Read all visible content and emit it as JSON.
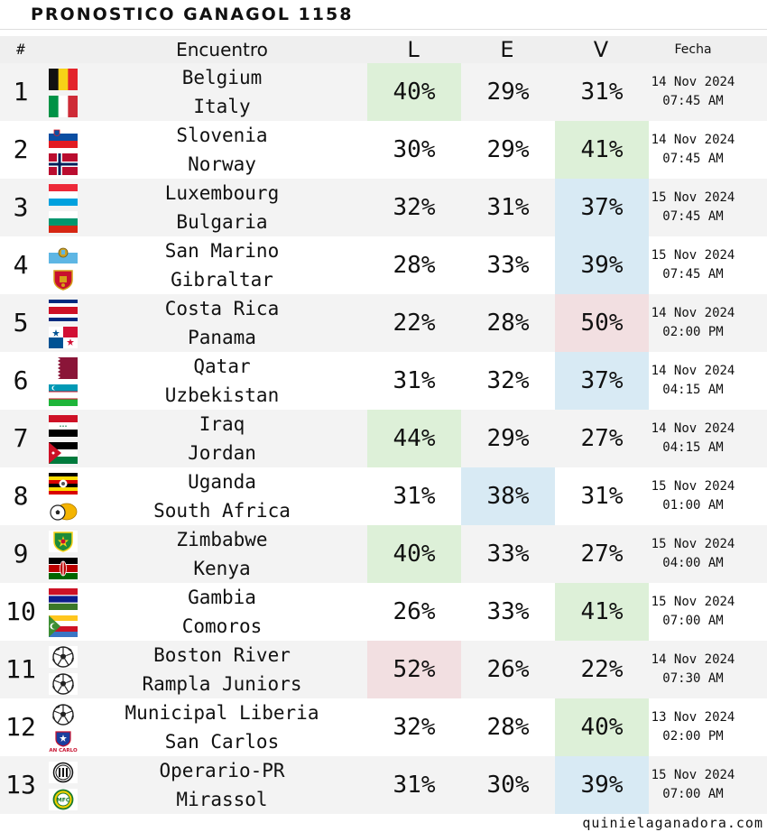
{
  "title": "PRONOSTICO GANAGOL 1158",
  "header": {
    "num": "#",
    "match": "Encuentro",
    "l": "L",
    "e": "E",
    "v": "V",
    "date": "Fecha"
  },
  "footer": "quinielaganadora.com",
  "matches": [
    {
      "num": "1",
      "home": "Belgium",
      "away": "Italy",
      "l": "40%",
      "e": "29%",
      "v": "31%",
      "highlight": "l",
      "hl_color": "green",
      "date": "14 Nov 2024",
      "time": "07:45 AM",
      "home_icon": "belgium-flag-icon",
      "away_icon": "italy-flag-icon"
    },
    {
      "num": "2",
      "home": "Slovenia",
      "away": "Norway",
      "l": "30%",
      "e": "29%",
      "v": "41%",
      "highlight": "v",
      "hl_color": "green",
      "date": "14 Nov 2024",
      "time": "07:45 AM",
      "home_icon": "slovenia-flag-icon",
      "away_icon": "norway-flag-icon"
    },
    {
      "num": "3",
      "home": "Luxembourg",
      "away": "Bulgaria",
      "l": "32%",
      "e": "31%",
      "v": "37%",
      "highlight": "v",
      "hl_color": "blue",
      "date": "15 Nov 2024",
      "time": "07:45 AM",
      "home_icon": "luxembourg-flag-icon",
      "away_icon": "bulgaria-flag-icon"
    },
    {
      "num": "4",
      "home": "San Marino",
      "away": "Gibraltar",
      "l": "28%",
      "e": "33%",
      "v": "39%",
      "highlight": "v",
      "hl_color": "blue",
      "date": "15 Nov 2024",
      "time": "07:45 AM",
      "home_icon": "san-marino-flag-icon",
      "away_icon": "gibraltar-crest-icon"
    },
    {
      "num": "5",
      "home": "Costa Rica",
      "away": "Panama",
      "l": "22%",
      "e": "28%",
      "v": "50%",
      "highlight": "v",
      "hl_color": "red",
      "date": "14 Nov 2024",
      "time": "02:00 PM",
      "home_icon": "costa-rica-flag-icon",
      "away_icon": "panama-flag-icon"
    },
    {
      "num": "6",
      "home": "Qatar",
      "away": "Uzbekistan",
      "l": "31%",
      "e": "32%",
      "v": "37%",
      "highlight": "v",
      "hl_color": "blue",
      "date": "14 Nov 2024",
      "time": "04:15 AM",
      "home_icon": "qatar-flag-icon",
      "away_icon": "uzbekistan-flag-icon"
    },
    {
      "num": "7",
      "home": "Iraq",
      "away": "Jordan",
      "l": "44%",
      "e": "29%",
      "v": "27%",
      "highlight": "l",
      "hl_color": "green",
      "date": "14 Nov 2024",
      "time": "04:15 AM",
      "home_icon": "iraq-flag-icon",
      "away_icon": "jordan-flag-icon"
    },
    {
      "num": "8",
      "home": "Uganda",
      "away": "South Africa",
      "l": "31%",
      "e": "38%",
      "v": "31%",
      "highlight": "e",
      "hl_color": "blue",
      "date": "15 Nov 2024",
      "time": "01:00 AM",
      "home_icon": "uganda-flag-icon",
      "away_icon": "safa-crest-icon"
    },
    {
      "num": "9",
      "home": "Zimbabwe",
      "away": "Kenya",
      "l": "40%",
      "e": "33%",
      "v": "27%",
      "highlight": "l",
      "hl_color": "green",
      "date": "15 Nov 2024",
      "time": "04:00 AM",
      "home_icon": "zimbabwe-crest-icon",
      "away_icon": "kenya-flag-icon"
    },
    {
      "num": "10",
      "home": "Gambia",
      "away": "Comoros",
      "l": "26%",
      "e": "33%",
      "v": "41%",
      "highlight": "v",
      "hl_color": "green",
      "date": "15 Nov 2024",
      "time": "07:00 AM",
      "home_icon": "gambia-flag-icon",
      "away_icon": "comoros-flag-icon"
    },
    {
      "num": "11",
      "home": "Boston River",
      "away": "Rampla Juniors",
      "l": "52%",
      "e": "26%",
      "v": "22%",
      "highlight": "l",
      "hl_color": "red",
      "date": "14 Nov 2024",
      "time": "07:30 AM",
      "home_icon": "soccer-ball-icon",
      "away_icon": "soccer-ball-icon"
    },
    {
      "num": "12",
      "home": "Municipal Liberia",
      "away": "San Carlos",
      "l": "32%",
      "e": "28%",
      "v": "40%",
      "highlight": "v",
      "hl_color": "green",
      "date": "13 Nov 2024",
      "time": "02:00 PM",
      "home_icon": "soccer-ball-icon",
      "away_icon": "san-carlos-crest-icon"
    },
    {
      "num": "13",
      "home": "Operario-PR",
      "away": "Mirassol",
      "l": "31%",
      "e": "30%",
      "v": "39%",
      "highlight": "v",
      "hl_color": "blue",
      "date": "15 Nov 2024",
      "time": "07:00 AM",
      "home_icon": "operario-crest-icon",
      "away_icon": "mirassol-crest-icon"
    }
  ]
}
